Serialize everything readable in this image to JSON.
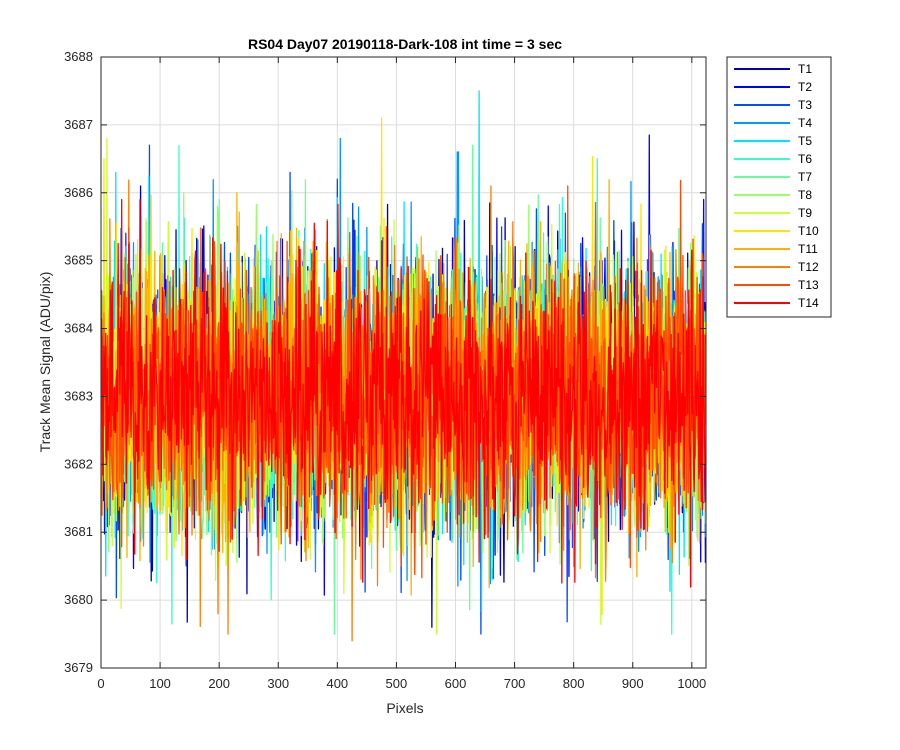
{
  "chart_data": {
    "type": "line",
    "title": "RS04 Day07 20190118-Dark-108 int time = 3 sec",
    "xlabel": "Pixels",
    "ylabel": "Track Mean Signal (ADU/pix)",
    "xlim": [
      0,
      1024
    ],
    "ylim": [
      3679,
      3688
    ],
    "xticks": [
      0,
      100,
      200,
      300,
      400,
      500,
      600,
      700,
      800,
      900,
      1000
    ],
    "yticks": [
      3679,
      3680,
      3681,
      3682,
      3683,
      3684,
      3685,
      3686,
      3687,
      3688
    ],
    "grid": true,
    "legend_position": "outside-top-right",
    "n_points_per_series": 1024,
    "series_mean": 3683,
    "series": [
      {
        "name": "T1",
        "color": "#0000b3",
        "peaks": [
          {
            "x": 67,
            "y": 3686.1
          },
          {
            "x": 560,
            "y": 3679.6
          }
        ]
      },
      {
        "name": "T2",
        "color": "#0000ff",
        "peaks": [
          {
            "x": 928,
            "y": 3686.85
          },
          {
            "x": 1020,
            "y": 3685.9
          }
        ]
      },
      {
        "name": "T3",
        "color": "#004cff",
        "peaks": [
          {
            "x": 320,
            "y": 3686.3
          },
          {
            "x": 400,
            "y": 3686.2
          }
        ]
      },
      {
        "name": "T4",
        "color": "#0099ff",
        "peaks": [
          {
            "x": 405,
            "y": 3686.8
          },
          {
            "x": 605,
            "y": 3686.6
          }
        ]
      },
      {
        "name": "T5",
        "color": "#00e5ff",
        "peaks": [
          {
            "x": 640,
            "y": 3687.5
          },
          {
            "x": 25,
            "y": 3686.3
          }
        ]
      },
      {
        "name": "T6",
        "color": "#33ffcc",
        "peaks": [
          {
            "x": 840,
            "y": 3686.5
          }
        ]
      },
      {
        "name": "T7",
        "color": "#66ff99",
        "peaks": [
          {
            "x": 200,
            "y": 3685.9
          }
        ]
      },
      {
        "name": "T8",
        "color": "#99ff66",
        "peaks": [
          {
            "x": 140,
            "y": 3686.0
          }
        ]
      },
      {
        "name": "T9",
        "color": "#ccff33",
        "peaks": [
          {
            "x": 10,
            "y": 3686.8
          }
        ]
      },
      {
        "name": "T10",
        "color": "#ffe500",
        "peaks": [
          {
            "x": 475,
            "y": 3687.1
          },
          {
            "x": 5,
            "y": 3686.5
          }
        ]
      },
      {
        "name": "T11",
        "color": "#ffb200",
        "peaks": [
          {
            "x": 230,
            "y": 3686.0
          }
        ]
      },
      {
        "name": "T12",
        "color": "#ff8000",
        "peaks": [
          {
            "x": 425,
            "y": 3679.4
          },
          {
            "x": 660,
            "y": 3686.1
          }
        ]
      },
      {
        "name": "T13",
        "color": "#ff4c00",
        "peaks": [
          {
            "x": 790,
            "y": 3686.1
          }
        ]
      },
      {
        "name": "T14",
        "color": "#ff0000",
        "peaks": [
          {
            "x": 35,
            "y": 3685.9
          }
        ]
      }
    ]
  }
}
